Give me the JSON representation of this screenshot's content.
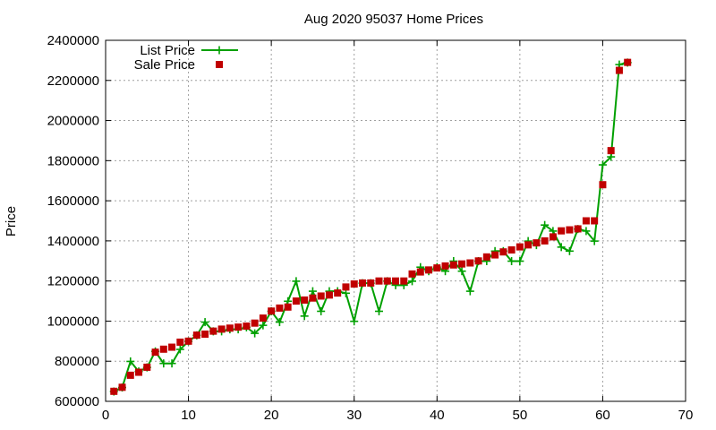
{
  "chart_data": {
    "type": "line",
    "title": "Aug 2020 95037 Home Prices",
    "xlabel": "",
    "ylabel": "Price",
    "xlim": [
      0,
      70
    ],
    "ylim": [
      600000,
      2400000
    ],
    "x_ticks": [
      0,
      10,
      20,
      30,
      40,
      50,
      60,
      70
    ],
    "y_ticks": [
      600000,
      800000,
      1000000,
      1200000,
      1400000,
      1600000,
      1800000,
      2000000,
      2200000,
      2400000
    ],
    "grid": true,
    "legend_position": "top-left",
    "series": [
      {
        "name": "List Price",
        "color": "#00a000",
        "marker": "plus",
        "line": true,
        "x": [
          1,
          2,
          3,
          4,
          5,
          6,
          7,
          8,
          9,
          10,
          11,
          12,
          13,
          14,
          15,
          16,
          17,
          18,
          19,
          20,
          21,
          22,
          23,
          24,
          25,
          26,
          27,
          28,
          29,
          30,
          31,
          32,
          33,
          34,
          35,
          36,
          37,
          38,
          39,
          40,
          41,
          42,
          43,
          44,
          45,
          46,
          47,
          48,
          49,
          50,
          51,
          52,
          53,
          54,
          55,
          56,
          57,
          58,
          59,
          60,
          61,
          62,
          63
        ],
        "values": [
          649000,
          669000,
          799000,
          749000,
          769000,
          849000,
          789000,
          789000,
          859000,
          899000,
          929000,
          995000,
          949000,
          949000,
          959000,
          959000,
          969000,
          939000,
          979000,
          1049000,
          995000,
          1099000,
          1199000,
          1025000,
          1149000,
          1049000,
          1149000,
          1149000,
          1139000,
          999000,
          1189000,
          1189000,
          1049000,
          1199000,
          1179000,
          1179000,
          1199000,
          1269000,
          1249000,
          1269000,
          1249000,
          1299000,
          1249000,
          1149000,
          1299000,
          1299000,
          1349000,
          1349000,
          1299000,
          1299000,
          1399000,
          1379000,
          1479000,
          1449000,
          1369000,
          1349000,
          1459000,
          1449000,
          1399000,
          1779000,
          1819000,
          2279000,
          2289000
        ]
      },
      {
        "name": "Sale Price",
        "color": "#c00000",
        "marker": "square",
        "line": false,
        "x": [
          1,
          2,
          3,
          4,
          5,
          6,
          7,
          8,
          9,
          10,
          11,
          12,
          13,
          14,
          15,
          16,
          17,
          18,
          19,
          20,
          21,
          22,
          23,
          24,
          25,
          26,
          27,
          28,
          29,
          30,
          31,
          32,
          33,
          34,
          35,
          36,
          37,
          38,
          39,
          40,
          41,
          42,
          43,
          44,
          45,
          46,
          47,
          48,
          49,
          50,
          51,
          52,
          53,
          54,
          55,
          56,
          57,
          58,
          59,
          60,
          61,
          62,
          63
        ],
        "values": [
          650000,
          670000,
          730000,
          745000,
          770000,
          845000,
          860000,
          870000,
          895000,
          900000,
          930000,
          935000,
          950000,
          960000,
          965000,
          970000,
          975000,
          990000,
          1015000,
          1050000,
          1065000,
          1070000,
          1100000,
          1105000,
          1115000,
          1125000,
          1130000,
          1140000,
          1170000,
          1185000,
          1190000,
          1190000,
          1200000,
          1200000,
          1200000,
          1200000,
          1235000,
          1245000,
          1255000,
          1265000,
          1275000,
          1280000,
          1285000,
          1290000,
          1300000,
          1320000,
          1330000,
          1345000,
          1355000,
          1370000,
          1380000,
          1390000,
          1400000,
          1420000,
          1450000,
          1455000,
          1460000,
          1500000,
          1500000,
          1680000,
          1850000,
          2250000,
          2290000
        ]
      }
    ]
  }
}
